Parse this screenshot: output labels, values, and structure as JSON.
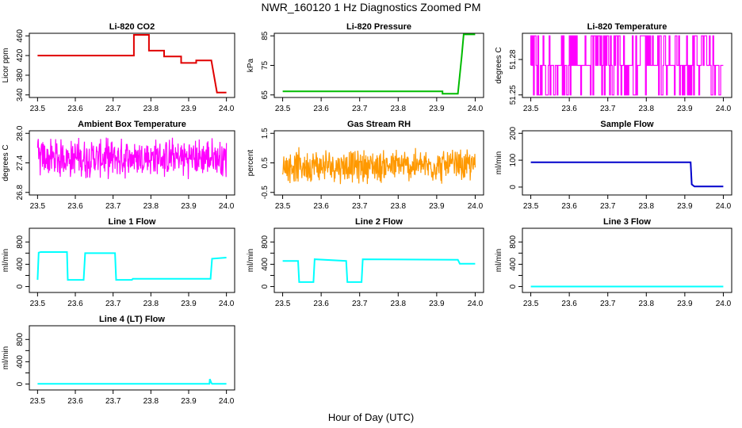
{
  "figure": {
    "title": "NWR_160120  1 Hz Diagnostics Zoomed PM",
    "xlabel": "Hour of Day (UTC)"
  },
  "chart_data": [
    {
      "type": "line",
      "title": "Li-820 CO2",
      "ylabel": "Licor ppm",
      "color": "#e00000",
      "style": "step",
      "xlim": [
        23.5,
        24.0
      ],
      "ylim": [
        340,
        460
      ],
      "xticks": [
        "23.5",
        "23.6",
        "23.7",
        "23.8",
        "23.9",
        "24.0"
      ],
      "yticks": [
        "340",
        "380",
        "420",
        "460"
      ],
      "x": [
        23.5,
        23.755,
        23.755,
        23.795,
        23.795,
        23.835,
        23.835,
        23.88,
        23.88,
        23.92,
        23.92,
        23.96,
        23.975,
        23.98,
        24.0
      ],
      "y": [
        420,
        420,
        462,
        462,
        430,
        430,
        418,
        418,
        405,
        405,
        410,
        410,
        345,
        345,
        345
      ]
    },
    {
      "type": "line",
      "title": "Li-820 Pressure",
      "ylabel": "kPa",
      "color": "#00bb00",
      "style": "step",
      "xlim": [
        23.5,
        24.0
      ],
      "ylim": [
        65,
        85
      ],
      "xticks": [
        "23.5",
        "23.6",
        "23.7",
        "23.8",
        "23.9",
        "24.0"
      ],
      "yticks": [
        "65",
        "75",
        "85"
      ],
      "x": [
        23.5,
        23.915,
        23.915,
        23.955,
        23.965,
        23.97,
        24.0
      ],
      "y": [
        66.2,
        66.2,
        65.4,
        65.4,
        78,
        85.5,
        85.5
      ]
    },
    {
      "type": "line",
      "title": "Li-820 Temperature",
      "ylabel": "degrees C",
      "color": "#ff00ff",
      "style": "toggle",
      "xlim": [
        23.5,
        24.0
      ],
      "ylim": [
        51.25,
        51.3
      ],
      "xticks": [
        "23.5",
        "23.6",
        "23.7",
        "23.8",
        "23.9",
        "24.0"
      ],
      "yticks": [
        "51.25",
        "51.28"
      ],
      "levels": [
        51.25,
        51.275,
        51.3
      ]
    },
    {
      "type": "line",
      "title": "Ambient Box Temperature",
      "ylabel": "degrees C",
      "color": "#ff00ff",
      "style": "noise",
      "xlim": [
        23.5,
        24.0
      ],
      "ylim": [
        26.8,
        28.0
      ],
      "xticks": [
        "23.5",
        "23.6",
        "23.7",
        "23.8",
        "23.9",
        "24.0"
      ],
      "yticks": [
        "26.8",
        "27.4",
        "28.0"
      ],
      "mean": 27.5,
      "spread": 0.45
    },
    {
      "type": "line",
      "title": "Gas Stream RH",
      "ylabel": "percent",
      "color": "#ff9900",
      "style": "noise",
      "xlim": [
        23.5,
        24.0
      ],
      "ylim": [
        -0.5,
        1.5
      ],
      "xticks": [
        "23.5",
        "23.6",
        "23.7",
        "23.8",
        "23.9",
        "24.0"
      ],
      "yticks": [
        "-0.5",
        "0.5",
        "1.5"
      ],
      "mean": 0.4,
      "spread": 0.65
    },
    {
      "type": "line",
      "title": "Sample Flow",
      "ylabel": "ml/min",
      "color": "#0000cc",
      "style": "step",
      "xlim": [
        23.5,
        24.0
      ],
      "ylim": [
        -20,
        200
      ],
      "xticks": [
        "23.5",
        "23.6",
        "23.7",
        "23.8",
        "23.9",
        "24.0"
      ],
      "yticks": [
        "0",
        "100",
        "200"
      ],
      "x": [
        23.5,
        23.915,
        23.918,
        23.925,
        24.0
      ],
      "y": [
        92,
        92,
        10,
        2,
        2
      ]
    },
    {
      "type": "line",
      "title": "Line 1 Flow",
      "ylabel": "ml/min",
      "color": "#00ffff",
      "style": "step",
      "xlim": [
        23.5,
        24.0
      ],
      "ylim": [
        -60,
        1000
      ],
      "xticks": [
        "23.5",
        "23.6",
        "23.7",
        "23.8",
        "23.9",
        "24.0"
      ],
      "yticks": [
        "0",
        "400",
        "800"
      ],
      "yticks_minor": [
        "200",
        "600"
      ],
      "x": [
        23.5,
        23.503,
        23.508,
        23.578,
        23.58,
        23.622,
        23.626,
        23.705,
        23.708,
        23.75,
        23.752,
        23.958,
        23.962,
        24.0
      ],
      "y": [
        120,
        610,
        620,
        620,
        120,
        120,
        600,
        600,
        120,
        120,
        140,
        140,
        500,
        520
      ]
    },
    {
      "type": "line",
      "title": "Line 2 Flow",
      "ylabel": "ml/min",
      "color": "#00ffff",
      "style": "step",
      "xlim": [
        23.5,
        24.0
      ],
      "ylim": [
        -60,
        1000
      ],
      "xticks": [
        "23.5",
        "23.6",
        "23.7",
        "23.8",
        "23.9",
        "24.0"
      ],
      "yticks": [
        "0",
        "400",
        "800"
      ],
      "yticks_minor": [
        "200",
        "600"
      ],
      "x": [
        23.5,
        23.54,
        23.543,
        23.58,
        23.583,
        23.665,
        23.668,
        23.705,
        23.708,
        23.955,
        23.96,
        24.0
      ],
      "y": [
        460,
        460,
        80,
        80,
        490,
        460,
        80,
        80,
        490,
        480,
        410,
        410
      ]
    },
    {
      "type": "line",
      "title": "Line 3 Flow",
      "ylabel": "ml/min",
      "color": "#00ffff",
      "style": "step",
      "xlim": [
        23.5,
        24.0
      ],
      "ylim": [
        -60,
        1000
      ],
      "xticks": [
        "23.5",
        "23.6",
        "23.7",
        "23.8",
        "23.9",
        "24.0"
      ],
      "yticks": [
        "0",
        "400",
        "800"
      ],
      "yticks_minor": [
        "200",
        "600"
      ],
      "x": [
        23.5,
        24.0
      ],
      "y": [
        0,
        0
      ]
    },
    {
      "type": "line",
      "title": "Line 4 (LT) Flow",
      "ylabel": "ml/min",
      "color": "#00ffff",
      "style": "step",
      "xlim": [
        23.5,
        24.0
      ],
      "ylim": [
        -60,
        1000
      ],
      "xticks": [
        "23.5",
        "23.6",
        "23.7",
        "23.8",
        "23.9",
        "24.0"
      ],
      "yticks": [
        "0",
        "400",
        "800"
      ],
      "yticks_minor": [
        "200",
        "600"
      ],
      "x": [
        23.5,
        23.955,
        23.956,
        23.96,
        23.962,
        24.0
      ],
      "y": [
        5,
        5,
        90,
        20,
        5,
        5
      ]
    }
  ]
}
